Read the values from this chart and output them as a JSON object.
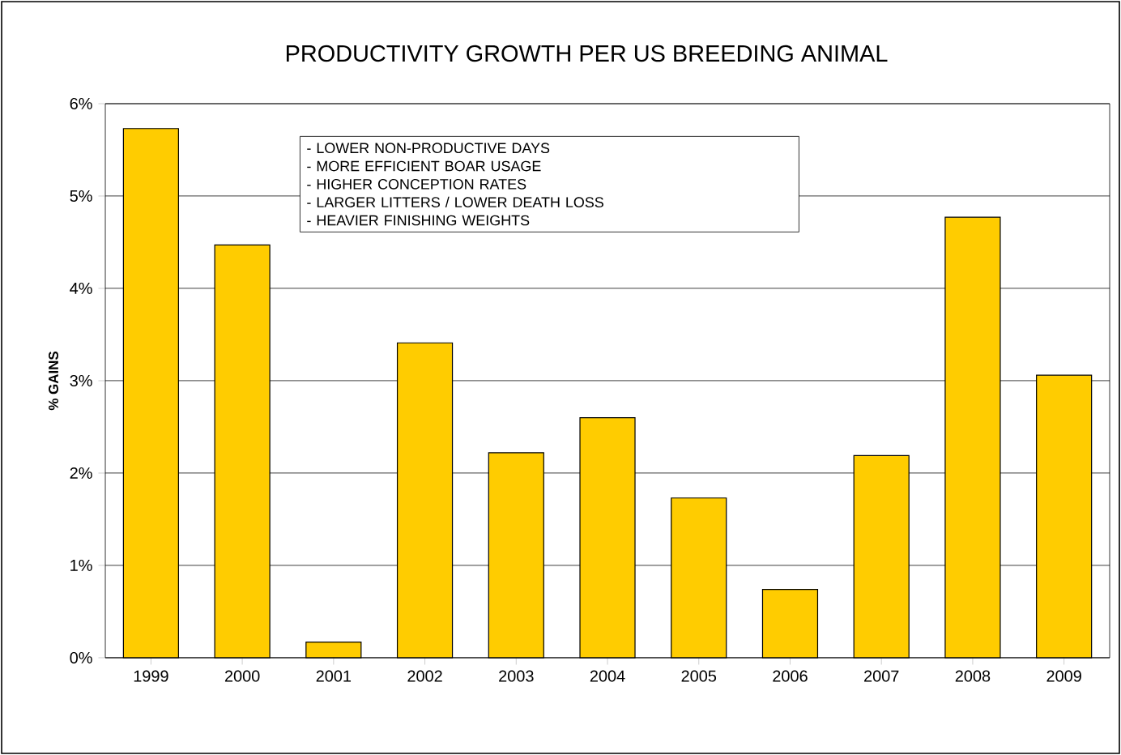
{
  "chart_data": {
    "type": "bar",
    "title": "PRODUCTIVITY GROWTH PER US BREEDING ANIMAL",
    "ylabel": "% GAINS",
    "categories": [
      "1999",
      "2000",
      "2001",
      "2002",
      "2003",
      "2004",
      "2005",
      "2006",
      "2007",
      "2008",
      "2009"
    ],
    "values": [
      5.73,
      4.47,
      0.17,
      3.41,
      2.22,
      2.6,
      1.73,
      0.74,
      2.19,
      4.77,
      3.06
    ],
    "color": "#ffcc00",
    "ylim": [
      0,
      6
    ],
    "yticks": [
      {
        "value": 0,
        "label": "0%"
      },
      {
        "value": 1,
        "label": "1%"
      },
      {
        "value": 2,
        "label": "2%"
      },
      {
        "value": 3,
        "label": "3%"
      },
      {
        "value": 4,
        "label": "4%"
      },
      {
        "value": 5,
        "label": "5%"
      },
      {
        "value": 6,
        "label": "6%"
      }
    ],
    "grid": "y",
    "annotations": [
      "- LOWER NON-PRODUCTIVE DAYS",
      "- MORE EFFICIENT BOAR USAGE",
      "- HIGHER CONCEPTION RATES",
      "- LARGER LITTERS / LOWER DEATH LOSS",
      "- HEAVIER FINISHING WEIGHTS"
    ]
  }
}
